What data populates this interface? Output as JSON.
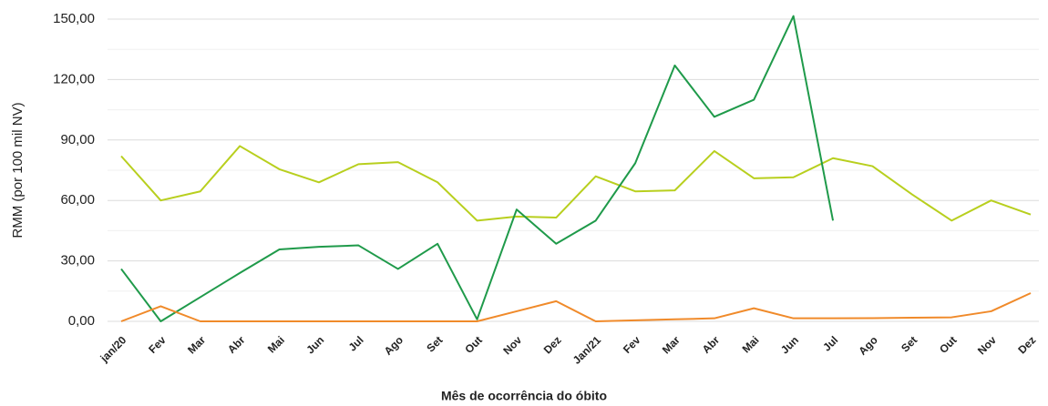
{
  "chart_data": {
    "type": "line",
    "y_label": "RMM (por 100 mil NV)",
    "x_label": "Mês de ocorrência do óbito",
    "categories": [
      "jan/20",
      "Fev",
      "Mar",
      "Abr",
      "Mai",
      "Jun",
      "Jul",
      "Ago",
      "Set",
      "Out",
      "Nov",
      "Dez",
      "Jan/21",
      "Fev",
      "Mar",
      "Abr",
      "Mai",
      "Jun",
      "Jul",
      "Ago",
      "Set",
      "Out",
      "Nov",
      "Dez"
    ],
    "series": [
      {
        "color": "#b8cf1e",
        "values": [
          82,
          60,
          64.5,
          87,
          75.5,
          69,
          78,
          79,
          69,
          50,
          52,
          51.5,
          72,
          64.5,
          65,
          84.5,
          71,
          71.5,
          81,
          77,
          63,
          50,
          60,
          53
        ]
      },
      {
        "color": "#1f9a4a",
        "values": [
          26,
          0,
          12,
          24,
          35.7,
          37,
          37.7,
          26,
          38.5,
          1,
          55.5,
          38.5,
          50,
          78.5,
          127,
          101.5,
          110,
          151.5,
          50,
          null,
          null,
          null,
          null,
          null
        ]
      },
      {
        "color": "#f08a2a",
        "values": [
          0,
          7.5,
          0,
          0,
          0,
          0,
          0,
          0,
          0,
          0,
          5,
          10,
          0,
          0.5,
          1,
          1.5,
          6.5,
          1.5,
          1.5,
          1.6,
          1.8,
          2,
          5,
          14
        ]
      }
    ],
    "ylim": [
      0,
      155
    ],
    "yticks": [
      {
        "value": 0,
        "label": "0,00"
      },
      {
        "value": 30,
        "label": "30,00"
      },
      {
        "value": 60,
        "label": "60,00"
      },
      {
        "value": 90,
        "label": "90,00"
      },
      {
        "value": 120,
        "label": "120,00"
      },
      {
        "value": 150,
        "label": "150,00"
      }
    ],
    "minor_yticks": [
      15,
      45,
      75,
      105,
      135
    ],
    "grid": true
  }
}
